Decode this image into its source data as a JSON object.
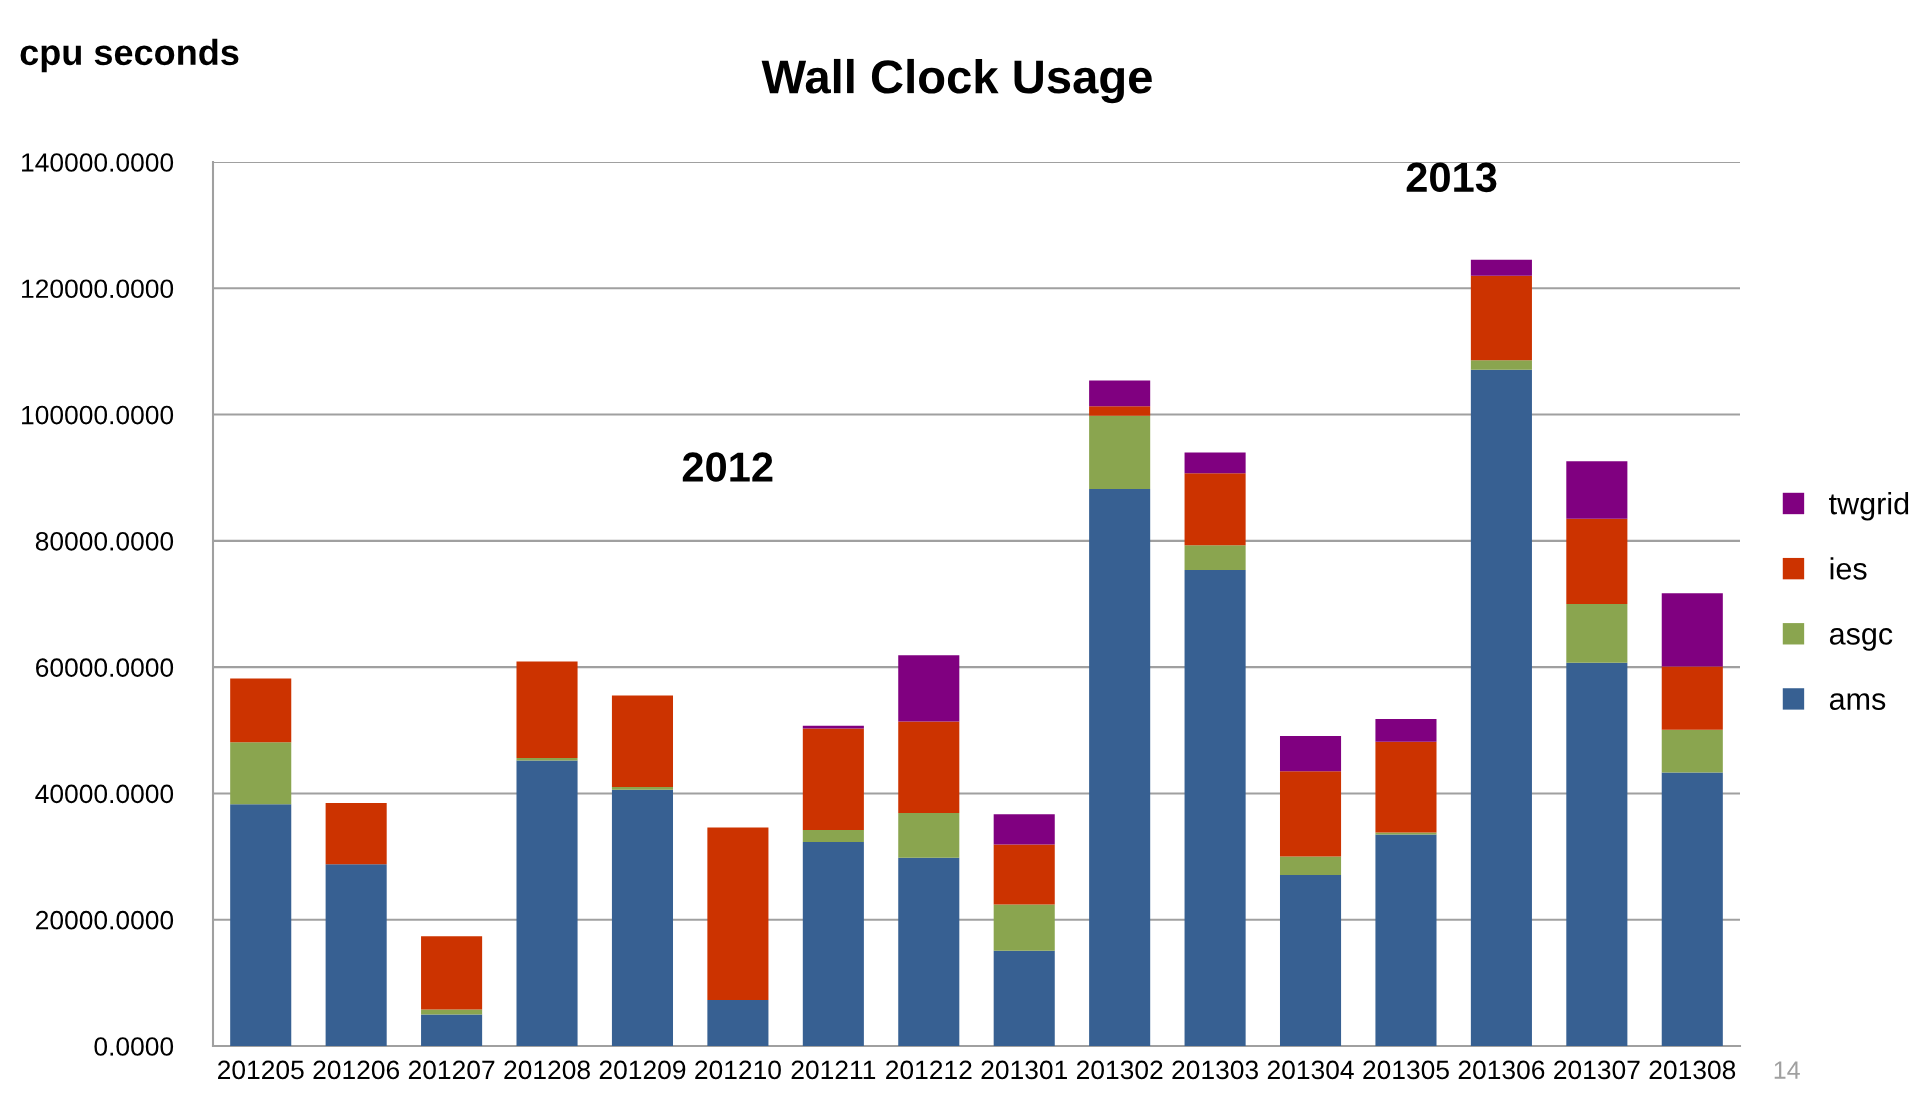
{
  "chart_data": {
    "type": "bar",
    "title": "Wall Clock Usage",
    "ylabel": "cpu seconds",
    "stacked": true,
    "grid": "y",
    "legend": "right",
    "categories": [
      "201205",
      "201206",
      "201207",
      "201208",
      "201209",
      "201210",
      "201211",
      "201212",
      "201301",
      "201302",
      "201303",
      "201304",
      "201305",
      "201306",
      "201307",
      "201308"
    ],
    "series": [
      {
        "name": "ams",
        "color": "#376092",
        "values": [
          38300,
          28800,
          5000,
          45200,
          40600,
          7300,
          32300,
          29800,
          15100,
          88200,
          75400,
          27100,
          33500,
          107100,
          60700,
          43300
        ]
      },
      {
        "name": "asgc",
        "color": "#8aa54f",
        "values": [
          9800,
          0,
          800,
          400,
          400,
          0,
          1900,
          7100,
          7300,
          11600,
          3900,
          2900,
          300,
          1500,
          9300,
          6800
        ]
      },
      {
        "name": "ies",
        "color": "#cc3300",
        "values": [
          10100,
          9700,
          11600,
          15300,
          14500,
          27300,
          16100,
          14500,
          9500,
          1500,
          11400,
          13500,
          14400,
          13400,
          13500,
          10000
        ]
      },
      {
        "name": "twgrid",
        "color": "#800080",
        "values": [
          0,
          0,
          0,
          0,
          0,
          0,
          400,
          10500,
          4800,
          4100,
          3300,
          5600,
          3600,
          2500,
          9100,
          11600
        ]
      }
    ],
    "ylim": [
      0,
      140000
    ],
    "yticks": [
      {
        "value": 0,
        "label": "0.0000"
      },
      {
        "value": 20000,
        "label": "20000.0000"
      },
      {
        "value": 40000,
        "label": "40000.0000"
      },
      {
        "value": 60000,
        "label": "60000.0000"
      },
      {
        "value": 80000,
        "label": "80000.0000"
      },
      {
        "value": 100000,
        "label": "100000.0000"
      },
      {
        "value": 120000,
        "label": "120000.0000"
      },
      {
        "value": 140000,
        "label": "140000.0000"
      }
    ],
    "annotations": [
      "2012",
      "2013",
      "14"
    ]
  }
}
